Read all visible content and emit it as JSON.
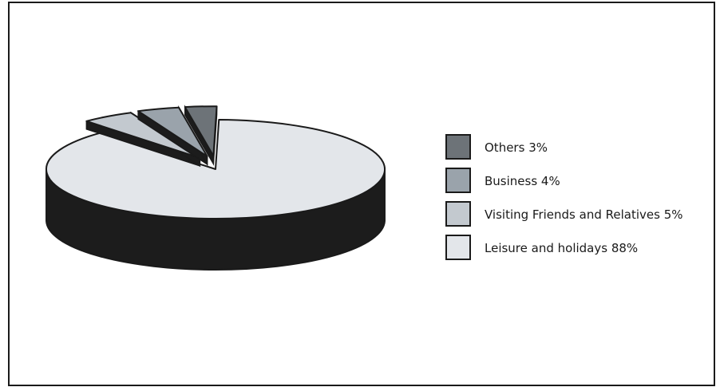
{
  "chart_data": {
    "type": "pie",
    "style": "3d-exploded",
    "title": "",
    "legend_position": "right",
    "series": [
      {
        "categories": [
          "Others",
          "Business",
          "Visiting Friends and Relatives",
          "Leisure and holidays"
        ],
        "values": [
          3,
          4,
          5,
          88
        ]
      }
    ],
    "legend": [
      {
        "label": "Others",
        "value_label": "3%",
        "color": "#6d7378"
      },
      {
        "label": "Business",
        "value_label": "4%",
        "color": "#9aa3ab"
      },
      {
        "label": "Visiting Friends and Relatives",
        "value_label": "5%",
        "color": "#c3c9cf"
      },
      {
        "label": "Leisure and holidays",
        "value_label": "88%",
        "color": "#e3e6ea"
      }
    ],
    "side_color": "#1c1c1c",
    "outline_color": "#1a1a1a"
  }
}
